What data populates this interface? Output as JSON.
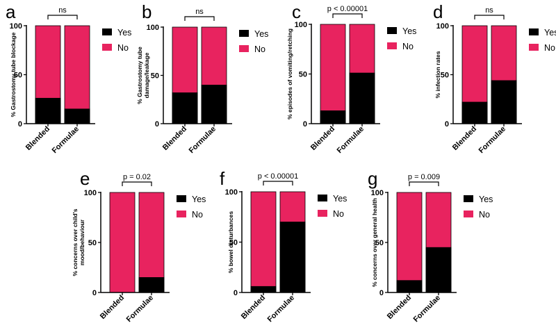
{
  "colors": {
    "yes": "#000000",
    "no": "#e8235f",
    "axis": "#000000"
  },
  "chart_data": [
    {
      "type": "bar",
      "stacked": true,
      "panel": "a",
      "categories": [
        "Blended",
        "Formulae"
      ],
      "series": [
        {
          "name": "Yes",
          "values": [
            26,
            15
          ]
        },
        {
          "name": "No",
          "values": [
            74,
            85
          ]
        }
      ],
      "ylabel": "% Gastrostomy tube blockage",
      "ylim": [
        0,
        100
      ],
      "yticks": [
        "0",
        "50",
        "100"
      ],
      "significance": "ns",
      "legend": [
        "Yes",
        "No"
      ]
    },
    {
      "type": "bar",
      "stacked": true,
      "panel": "b",
      "categories": [
        "Blended",
        "Formulae"
      ],
      "series": [
        {
          "name": "Yes",
          "values": [
            32,
            40
          ]
        },
        {
          "name": "No",
          "values": [
            68,
            60
          ]
        }
      ],
      "ylabel": [
        "% Gastrostomy tube",
        "damage/leakage"
      ],
      "ylim": [
        0,
        100
      ],
      "yticks": [
        "0",
        "50",
        "100"
      ],
      "significance": "ns",
      "legend": [
        "Yes",
        "No"
      ]
    },
    {
      "type": "bar",
      "stacked": true,
      "panel": "c",
      "categories": [
        "Blended",
        "Formulae"
      ],
      "series": [
        {
          "name": "Yes",
          "values": [
            13,
            51
          ]
        },
        {
          "name": "No",
          "values": [
            87,
            49
          ]
        }
      ],
      "ylabel": "% episodes of vomiting/retching",
      "ylim": [
        0,
        100
      ],
      "yticks": [
        "0",
        "50",
        "100"
      ],
      "significance": "p < 0.00001",
      "legend": [
        "Yes",
        "No"
      ]
    },
    {
      "type": "bar",
      "stacked": true,
      "panel": "d",
      "categories": [
        "Blended",
        "Formulae"
      ],
      "series": [
        {
          "name": "Yes",
          "values": [
            22,
            44
          ]
        },
        {
          "name": "No",
          "values": [
            78,
            56
          ]
        }
      ],
      "ylabel": "% infection rates",
      "ylim": [
        0,
        100
      ],
      "yticks": [
        "0",
        "50",
        "100"
      ],
      "significance": "ns",
      "legend": [
        "Yes",
        "No"
      ]
    },
    {
      "type": "bar",
      "stacked": true,
      "panel": "e",
      "categories": [
        "Blended",
        "Formulae"
      ],
      "series": [
        {
          "name": "Yes",
          "values": [
            0,
            15
          ]
        },
        {
          "name": "No",
          "values": [
            100,
            85
          ]
        }
      ],
      "ylabel": [
        "% concerns over child's",
        "mood/behaviour"
      ],
      "ylim": [
        0,
        100
      ],
      "yticks": [
        "0",
        "50",
        "100"
      ],
      "significance": "p = 0.02",
      "legend": [
        "Yes",
        "No"
      ]
    },
    {
      "type": "bar",
      "stacked": true,
      "panel": "f",
      "categories": [
        "Blended",
        "Formulae"
      ],
      "series": [
        {
          "name": "Yes",
          "values": [
            6,
            70
          ]
        },
        {
          "name": "No",
          "values": [
            94,
            30
          ]
        }
      ],
      "ylabel": "% bowel disturbances",
      "ylim": [
        0,
        100
      ],
      "yticks": [
        "0",
        "50",
        "100"
      ],
      "significance": "p < 0.00001",
      "legend": [
        "Yes",
        "No"
      ]
    },
    {
      "type": "bar",
      "stacked": true,
      "panel": "g",
      "categories": [
        "Blended",
        "Formulae"
      ],
      "series": [
        {
          "name": "Yes",
          "values": [
            12,
            45
          ]
        },
        {
          "name": "No",
          "values": [
            88,
            55
          ]
        }
      ],
      "ylabel": "% concerns over general health",
      "ylim": [
        0,
        100
      ],
      "yticks": [
        "0",
        "50",
        "100"
      ],
      "significance": "p = 0.009",
      "legend": [
        "Yes",
        "No"
      ]
    }
  ]
}
